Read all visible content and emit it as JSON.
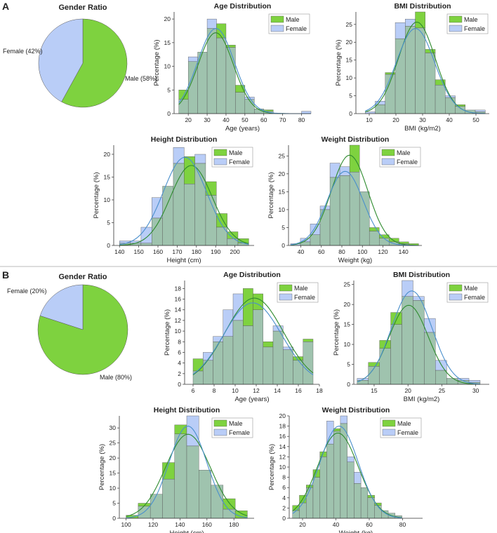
{
  "colors": {
    "male": "#7ed23f",
    "female": "#b9cdf7",
    "overlap": "#9fc3ae",
    "male_line": "#2e8b2e",
    "female_line": "#4a8fcc",
    "axis": "#333333",
    "divider": "#bbbbbb"
  },
  "panels": [
    {
      "label": "A",
      "pie": {
        "title": "Gender Ratio",
        "slices": [
          {
            "name": "Male",
            "label": "Male (58%)",
            "value": 58
          },
          {
            "name": "Female",
            "label": "Female (42%)",
            "value": 42
          }
        ]
      },
      "charts": [
        {
          "type": "bar",
          "title": "Age Distribution",
          "xlabel": "Age (years)",
          "ylabel": "Percentage (%)",
          "xlim": [
            12.5,
            85
          ],
          "ylim": [
            0,
            21.5
          ],
          "xticks": [
            20,
            30,
            40,
            50,
            60,
            70,
            80
          ],
          "yticks": [
            0,
            5,
            10,
            15,
            20
          ],
          "bin_start": 15,
          "bin_width": 5,
          "male": [
            5,
            11,
            13,
            18,
            19,
            14.5,
            6,
            3,
            1,
            0.8,
            0,
            0,
            0,
            0
          ],
          "female": [
            3,
            12,
            13,
            20,
            16,
            14,
            4.5,
            3.5,
            1,
            0.5,
            0,
            0,
            0,
            0.5
          ],
          "legend": [
            "Male",
            "Female"
          ]
        },
        {
          "type": "bar",
          "title": "BMI Distribution",
          "xlabel": "BMI (kg/m2)",
          "ylabel": "Percentage (%)",
          "xlim": [
            5,
            55
          ],
          "ylim": [
            0,
            28.5
          ],
          "xticks": [
            10,
            20,
            30,
            40,
            50
          ],
          "yticks": [
            0,
            5,
            10,
            15,
            20,
            25
          ],
          "bin_start": 8.5,
          "bin_width": 3.75,
          "male": [
            0,
            2.5,
            11.5,
            21,
            24.5,
            28.5,
            18,
            9.5,
            4.5,
            2.5,
            1,
            0.5
          ],
          "female": [
            0.5,
            3.5,
            11,
            25.5,
            26.5,
            24,
            17,
            8,
            5,
            2,
            1,
            1
          ],
          "legend": [
            "Male",
            "Female"
          ]
        },
        {
          "type": "bar",
          "title": "Height Distribution",
          "xlabel": "Height (cm)",
          "ylabel": "Percentage (%)",
          "xlim": [
            137,
            210
          ],
          "ylim": [
            0,
            22
          ],
          "xticks": [
            140,
            150,
            160,
            170,
            180,
            190,
            200
          ],
          "yticks": [
            0,
            5,
            10,
            15,
            20
          ],
          "bin_start": 140,
          "bin_width": 5.6,
          "male": [
            0.5,
            0.5,
            0.5,
            6,
            13,
            18,
            19.5,
            18,
            14,
            7,
            3,
            1.5
          ],
          "female": [
            1,
            1,
            4,
            10.5,
            13,
            21.5,
            13.5,
            20,
            11,
            4,
            1.5,
            0.5
          ],
          "legend": [
            "Male",
            "Female"
          ]
        },
        {
          "type": "bar",
          "title": "Weight Distribution",
          "xlabel": "Weight (kg)",
          "ylabel": "Percentage (%)",
          "xlim": [
            28,
            158
          ],
          "ylim": [
            0,
            28
          ],
          "xticks": [
            40,
            60,
            80,
            100,
            120,
            140
          ],
          "yticks": [
            0,
            5,
            10,
            15,
            20,
            25
          ],
          "bin_start": 30,
          "bin_width": 9.6,
          "male": [
            0,
            1,
            3,
            10,
            19,
            19.5,
            28,
            15,
            5,
            3,
            2,
            1,
            0.5
          ],
          "female": [
            0.5,
            2,
            6,
            11,
            23,
            22,
            20.5,
            15,
            4,
            2,
            1,
            0.5,
            0
          ],
          "legend": [
            "Male",
            "Female"
          ]
        }
      ]
    },
    {
      "label": "B",
      "pie": {
        "title": "Gender Ratio",
        "slices": [
          {
            "name": "Male",
            "label": "Male (80%)",
            "value": 80
          },
          {
            "name": "Female",
            "label": "Female (20%)",
            "value": 20
          }
        ]
      },
      "charts": [
        {
          "type": "bar",
          "title": "Age Distribution",
          "xlabel": "Age (years)",
          "ylabel": "Percentage (%)",
          "xlim": [
            5.2,
            18
          ],
          "ylim": [
            0,
            19.5
          ],
          "xticks": [
            6,
            8,
            10,
            12,
            14,
            16,
            18
          ],
          "yticks": [
            0,
            2,
            4,
            6,
            8,
            10,
            12,
            14,
            16,
            18
          ],
          "bin_start": 6,
          "bin_width": 0.95,
          "male": [
            4.8,
            4.5,
            8,
            9,
            12,
            18,
            17,
            8,
            10,
            6.5,
            5.2,
            8.5
          ],
          "female": [
            2.5,
            6,
            9,
            14,
            17,
            11,
            14,
            7,
            11,
            7,
            4.5,
            8
          ],
          "legend": [
            "Male",
            "Female"
          ]
        },
        {
          "type": "bar",
          "title": "BMI Distribution",
          "xlabel": "BMI (kg/m2)",
          "ylabel": "Percentage (%)",
          "xlim": [
            12,
            32
          ],
          "ylim": [
            0,
            26
          ],
          "xticks": [
            15,
            20,
            25,
            30
          ],
          "yticks": [
            0,
            5,
            10,
            15,
            20,
            25
          ],
          "bin_start": 12.5,
          "bin_width": 1.65,
          "male": [
            1,
            5.5,
            11,
            18,
            22,
            21,
            13,
            3.5,
            1.5,
            1,
            0.5
          ],
          "female": [
            1.5,
            4.5,
            9,
            15,
            26,
            22,
            16.5,
            6,
            1.5,
            1.5,
            1
          ],
          "legend": [
            "Male",
            "Female"
          ]
        },
        {
          "type": "bar",
          "title": "Height Distribution",
          "xlabel": "Height (cm)",
          "ylabel": "Percentage (%)",
          "xlim": [
            95,
            195
          ],
          "ylim": [
            0,
            34
          ],
          "xticks": [
            100,
            120,
            140,
            160,
            180
          ],
          "yticks": [
            0,
            5,
            10,
            15,
            20,
            25,
            30
          ],
          "bin_start": 100,
          "bin_width": 9,
          "male": [
            1,
            5,
            8,
            18.5,
            31,
            24,
            16,
            11,
            6.5,
            2.5
          ],
          "female": [
            0,
            4,
            8,
            13,
            28,
            34,
            16,
            11,
            3,
            0
          ],
          "legend": [
            "Male",
            "Female"
          ]
        },
        {
          "type": "bar",
          "title": "Weight Distribution",
          "xlabel": "Weight (kg)",
          "ylabel": "Percentage (%)",
          "xlim": [
            12,
            92
          ],
          "ylim": [
            0,
            20
          ],
          "xticks": [
            20,
            40,
            60,
            80
          ],
          "yticks": [
            0,
            2,
            4,
            6,
            8,
            10,
            12,
            14,
            16,
            18,
            20
          ],
          "bin_start": 14,
          "bin_width": 4.1,
          "male": [
            2.5,
            4.5,
            6.5,
            9.5,
            13,
            14.5,
            17.5,
            18.5,
            11,
            6.8,
            6,
            4.5,
            3,
            1.5,
            1,
            0.5
          ],
          "female": [
            1.5,
            3,
            6,
            8,
            12,
            19,
            17,
            20,
            12,
            9,
            6,
            4,
            2.5,
            1.5,
            1,
            0.5
          ],
          "legend": [
            "Male",
            "Female"
          ]
        }
      ]
    }
  ]
}
